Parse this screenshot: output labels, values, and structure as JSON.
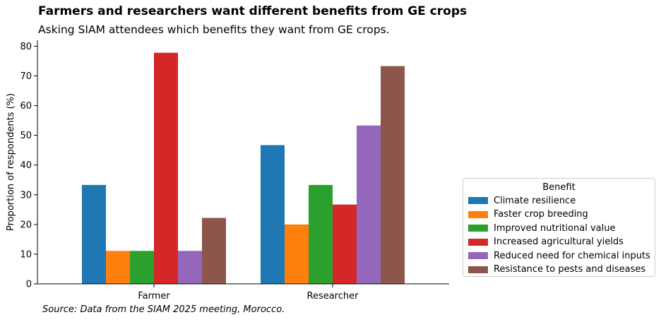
{
  "chart_data": {
    "type": "bar",
    "title": "Farmers and researchers want different benefits from GE crops",
    "subtitle": "Asking SIAM attendees which benefits they want from GE crops.",
    "source": "Source: Data from the SIAM 2025 meeting, Morocco.",
    "xlabel": "",
    "ylabel": "Proportion of respondents (%)",
    "categories": [
      "Farmer",
      "Researcher"
    ],
    "ylim": [
      0,
      82
    ],
    "yticks": [
      0,
      10,
      20,
      30,
      40,
      50,
      60,
      70,
      80
    ],
    "legend_title": "Benefit",
    "legend_position": "lower-right-outside",
    "grid": false,
    "series": [
      {
        "name": "Climate resilience",
        "color": "#1f77b4",
        "values": [
          33.3,
          46.7
        ]
      },
      {
        "name": "Faster crop breeding",
        "color": "#ff7f0e",
        "values": [
          11.1,
          20.0
        ]
      },
      {
        "name": "Improved nutritional value",
        "color": "#2ca02c",
        "values": [
          11.1,
          33.3
        ]
      },
      {
        "name": "Increased agricultural yields",
        "color": "#d62728",
        "values": [
          77.8,
          26.7
        ]
      },
      {
        "name": "Reduced need for chemical inputs",
        "color": "#9467bd",
        "values": [
          11.1,
          53.3
        ]
      },
      {
        "name": "Resistance to pests and diseases",
        "color": "#8c564b",
        "values": [
          22.2,
          73.3
        ]
      }
    ]
  }
}
